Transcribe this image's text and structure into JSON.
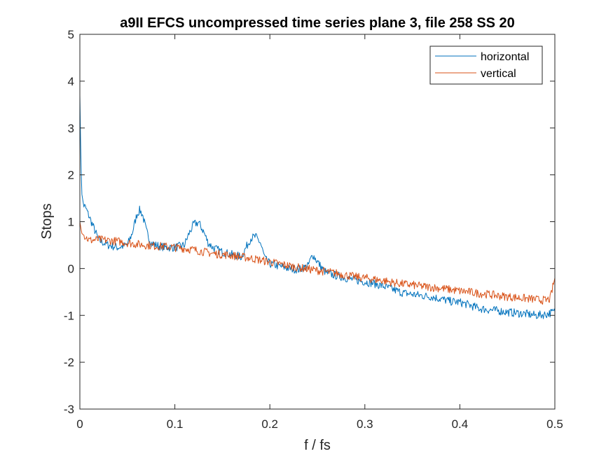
{
  "chart_data": {
    "type": "line",
    "title": "a9II EFCS uncompressed time series plane 3, file 258 SS 20",
    "xlabel": "f / fs",
    "ylabel": "Stops",
    "xlim": [
      0,
      0.5
    ],
    "ylim": [
      -3,
      5
    ],
    "x_ticks": [
      "0",
      "0.1",
      "0.2",
      "0.3",
      "0.4",
      "0.5"
    ],
    "y_ticks": [
      "-3",
      "-2",
      "-1",
      "0",
      "1",
      "2",
      "3",
      "4",
      "5"
    ],
    "x_tick_values": [
      0,
      0.1,
      0.2,
      0.3,
      0.4,
      0.5
    ],
    "y_tick_values": [
      -3,
      -2,
      -1,
      0,
      1,
      2,
      3,
      4,
      5
    ],
    "grid": false,
    "legend_position": "top-right",
    "series": [
      {
        "name": "horizontal",
        "color": "#0072BD",
        "x": [
          0,
          0.001,
          0.002,
          0.004,
          0.006,
          0.01,
          0.02,
          0.03,
          0.04,
          0.05,
          0.055,
          0.06,
          0.063,
          0.066,
          0.07,
          0.075,
          0.08,
          0.09,
          0.1,
          0.11,
          0.115,
          0.12,
          0.125,
          0.13,
          0.135,
          0.14,
          0.15,
          0.16,
          0.17,
          0.175,
          0.18,
          0.185,
          0.19,
          0.195,
          0.2,
          0.21,
          0.22,
          0.23,
          0.24,
          0.245,
          0.25,
          0.255,
          0.26,
          0.27,
          0.28,
          0.29,
          0.3,
          0.31,
          0.32,
          0.33,
          0.34,
          0.35,
          0.36,
          0.37,
          0.38,
          0.39,
          0.4,
          0.41,
          0.42,
          0.43,
          0.44,
          0.45,
          0.46,
          0.47,
          0.48,
          0.49,
          0.5
        ],
        "y": [
          3.7,
          2.4,
          1.6,
          1.35,
          1.3,
          1.1,
          0.6,
          0.5,
          0.45,
          0.5,
          0.75,
          1.15,
          1.25,
          1.15,
          0.8,
          0.55,
          0.5,
          0.45,
          0.45,
          0.5,
          0.75,
          0.95,
          0.98,
          0.8,
          0.55,
          0.45,
          0.35,
          0.3,
          0.25,
          0.45,
          0.65,
          0.68,
          0.55,
          0.2,
          0.1,
          0.05,
          0.0,
          -0.02,
          0.05,
          0.3,
          0.15,
          0.0,
          -0.1,
          -0.15,
          -0.2,
          -0.25,
          -0.28,
          -0.32,
          -0.38,
          -0.45,
          -0.52,
          -0.55,
          -0.58,
          -0.6,
          -0.65,
          -0.7,
          -0.72,
          -0.78,
          -0.85,
          -0.88,
          -0.9,
          -0.93,
          -0.95,
          -0.97,
          -1.0,
          -0.98,
          -0.92
        ]
      },
      {
        "name": "vertical",
        "color": "#D95319",
        "x": [
          0,
          0.002,
          0.01,
          0.02,
          0.03,
          0.04,
          0.05,
          0.06,
          0.07,
          0.08,
          0.09,
          0.1,
          0.11,
          0.12,
          0.13,
          0.14,
          0.15,
          0.16,
          0.17,
          0.18,
          0.19,
          0.2,
          0.21,
          0.22,
          0.23,
          0.24,
          0.25,
          0.26,
          0.27,
          0.28,
          0.29,
          0.3,
          0.31,
          0.32,
          0.33,
          0.34,
          0.35,
          0.36,
          0.37,
          0.38,
          0.39,
          0.4,
          0.41,
          0.42,
          0.43,
          0.44,
          0.45,
          0.46,
          0.47,
          0.48,
          0.49,
          0.495,
          0.5
        ],
        "y": [
          1.0,
          0.75,
          0.6,
          0.62,
          0.6,
          0.58,
          0.55,
          0.52,
          0.5,
          0.48,
          0.47,
          0.45,
          0.43,
          0.4,
          0.36,
          0.32,
          0.3,
          0.28,
          0.25,
          0.22,
          0.18,
          0.14,
          0.1,
          0.06,
          0.02,
          -0.01,
          -0.04,
          -0.07,
          -0.1,
          -0.14,
          -0.18,
          -0.2,
          -0.23,
          -0.26,
          -0.3,
          -0.33,
          -0.35,
          -0.38,
          -0.4,
          -0.42,
          -0.45,
          -0.48,
          -0.5,
          -0.53,
          -0.55,
          -0.58,
          -0.6,
          -0.62,
          -0.64,
          -0.66,
          -0.68,
          -0.65,
          -0.2
        ]
      }
    ]
  }
}
